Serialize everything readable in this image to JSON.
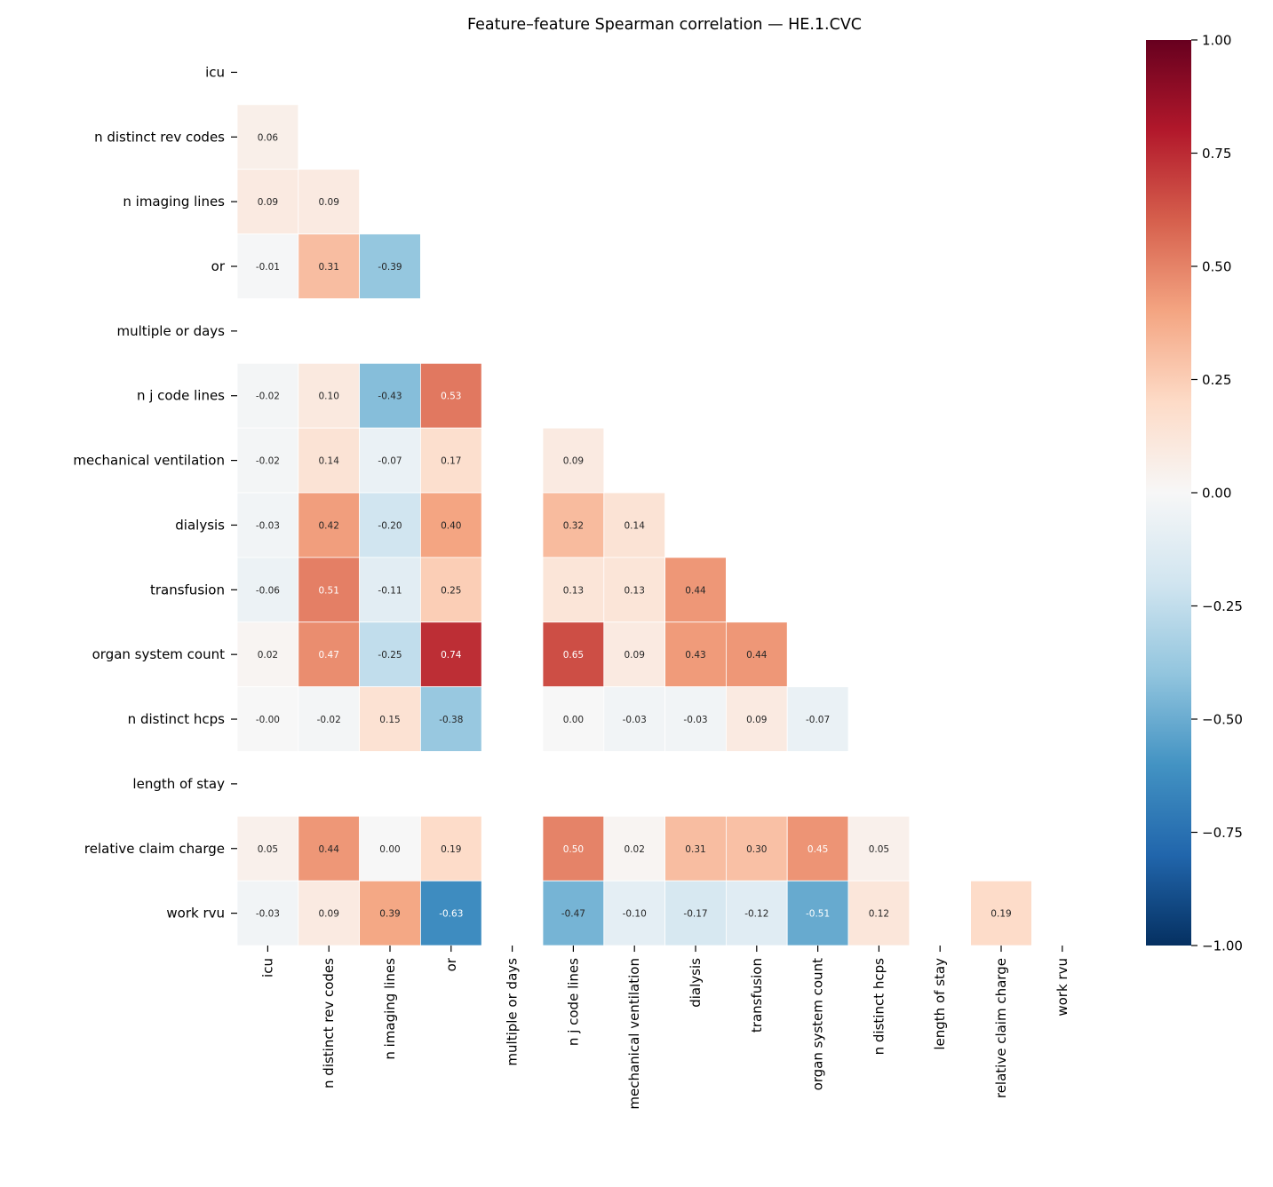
{
  "chart_data": {
    "type": "heatmap",
    "title": "Feature–feature Spearman correlation — HE.1.CVC",
    "labels": [
      "icu",
      "n distinct rev codes",
      "n imaging lines",
      "or",
      "multiple or days",
      "n j code lines",
      "mechanical ventilation",
      "dialysis",
      "transfusion",
      "organ system count",
      "n distinct hcps",
      "length of stay",
      "relative claim charge",
      "work rvu"
    ],
    "mask": "upper triangle including diagonal",
    "matrix": [
      [],
      [
        "0.06"
      ],
      [
        "0.09",
        "0.09"
      ],
      [
        "-0.01",
        "0.31",
        "-0.39"
      ],
      [
        null,
        null,
        null,
        null
      ],
      [
        "-0.02",
        "0.10",
        "-0.43",
        "0.53",
        null
      ],
      [
        "-0.02",
        "0.14",
        "-0.07",
        "0.17",
        null,
        "0.09"
      ],
      [
        "-0.03",
        "0.42",
        "-0.20",
        "0.40",
        null,
        "0.32",
        "0.14"
      ],
      [
        "-0.06",
        "0.51",
        "-0.11",
        "0.25",
        null,
        "0.13",
        "0.13",
        "0.44"
      ],
      [
        "0.02",
        "0.47",
        "-0.25",
        "0.74",
        null,
        "0.65",
        "0.09",
        "0.43",
        "0.44"
      ],
      [
        "-0.00",
        "-0.02",
        "0.15",
        "-0.38",
        null,
        "0.00",
        "-0.03",
        "-0.03",
        "0.09",
        "-0.07"
      ],
      [
        null,
        null,
        null,
        null,
        null,
        null,
        null,
        null,
        null,
        null,
        null
      ],
      [
        "0.05",
        "0.44",
        "0.00",
        "0.19",
        null,
        "0.50",
        "0.02",
        "0.31",
        "0.30",
        "0.45",
        "0.05",
        null
      ],
      [
        "-0.03",
        "0.09",
        "0.39",
        "-0.63",
        null,
        "-0.47",
        "-0.10",
        "-0.17",
        "-0.12",
        "-0.51",
        "0.12",
        null,
        "0.19"
      ]
    ],
    "colormap": "RdBu_r",
    "vmin": -1,
    "vmax": 1,
    "colorbar_ticks": [
      "1.00",
      "0.75",
      "0.50",
      "0.25",
      "0.00",
      "−0.25",
      "−0.50",
      "−0.75",
      "−1.00"
    ],
    "colorbar_tick_values": [
      1,
      0.75,
      0.5,
      0.25,
      0,
      -0.25,
      -0.5,
      -0.75,
      -1
    ]
  }
}
